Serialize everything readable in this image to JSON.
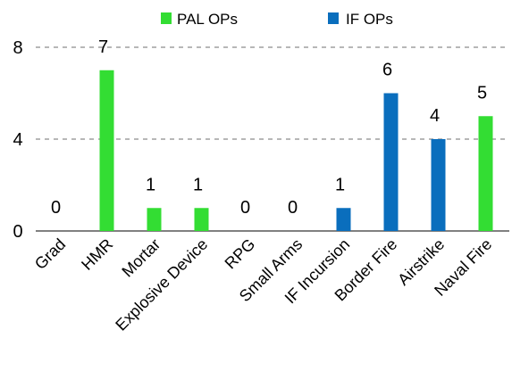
{
  "chart_data": {
    "type": "bar",
    "title": "",
    "xlabel": "",
    "ylabel": "",
    "ylim": [
      0,
      8
    ],
    "yticks": [
      0,
      4,
      8
    ],
    "grid": true,
    "legend_position": "top",
    "categories": [
      "Grad",
      "HMR",
      "Mortar",
      "Explosive Device",
      "RPG",
      "Small Arms",
      "IF Incursion",
      "Border Fire",
      "Airstrike",
      "Naval Fire"
    ],
    "values": [
      0,
      7,
      1,
      1,
      0,
      0,
      1,
      6,
      4,
      5
    ],
    "groups": [
      "PAL OPs",
      "PAL OPs",
      "PAL OPs",
      "PAL OPs",
      "PAL OPs",
      "PAL OPs",
      "IF OPs",
      "IF OPs",
      "IF OPs",
      "PAL OPs"
    ],
    "series": [
      {
        "name": "PAL OPs",
        "color": "#33dd33"
      },
      {
        "name": "IF OPs",
        "color": "#0a6ebd"
      }
    ]
  }
}
